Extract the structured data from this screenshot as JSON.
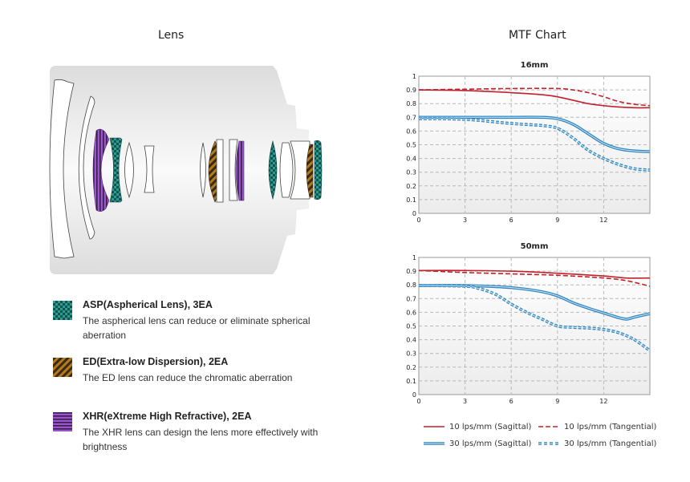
{
  "lens_section": {
    "title": "Lens",
    "legend": [
      {
        "icon": "asp-pattern-icon",
        "title": "ASP(Aspherical Lens), 3EA",
        "description": "The aspherical lens can reduce or eliminate spherical aberration",
        "color": "#1d7a72"
      },
      {
        "icon": "ed-pattern-icon",
        "title": "ED(Extra-low Dispersion), 2EA",
        "description": "The ED lens can reduce the chromatic aberration",
        "color": "#9a6a1e"
      },
      {
        "icon": "xhr-pattern-icon",
        "title": "XHR(eXtreme High Refractive), 2EA",
        "description": "The XHR lens can design the lens more effectively with brightness",
        "color": "#7a3ea0"
      }
    ]
  },
  "mtf_section": {
    "title": "MTF Chart",
    "legend": [
      {
        "label": "10 lps/mm (Sagittal)",
        "color": "#c0212b",
        "style": "solid"
      },
      {
        "label": "10 lps/mm (Tangential)",
        "color": "#c0212b",
        "style": "dashed"
      },
      {
        "label": "30 lps/mm (Sagittal)",
        "color": "#2f86c0",
        "style": "double"
      },
      {
        "label": "30 lps/mm (Tangential)",
        "color": "#2f86c0",
        "style": "double-dashed"
      }
    ]
  },
  "chart_data": [
    {
      "type": "line",
      "title": "16mm",
      "xlabel": "",
      "ylabel": "",
      "xlim": [
        0,
        15
      ],
      "ylim": [
        0,
        1
      ],
      "xticks": [
        0,
        3,
        6,
        9,
        12
      ],
      "yticks": [
        0,
        0.1,
        0.2,
        0.3,
        0.4,
        0.5,
        0.6,
        0.7,
        0.8,
        0.9,
        1
      ],
      "ytick_labels": [
        "0",
        "0.1",
        "0.2",
        "0.3",
        "0.4",
        "0.5",
        "0.6",
        "0.7",
        "0.8",
        "0.9",
        "1"
      ],
      "grid": true,
      "series": [
        {
          "name": "10 lps/mm (Sagittal)",
          "x": [
            0,
            3,
            6,
            8,
            9,
            10,
            11,
            12,
            13,
            14,
            15
          ],
          "y": [
            0.9,
            0.895,
            0.88,
            0.865,
            0.85,
            0.825,
            0.8,
            0.785,
            0.775,
            0.77,
            0.77
          ]
        },
        {
          "name": "10 lps/mm (Tangential)",
          "x": [
            0,
            3,
            6,
            9,
            10,
            11,
            12,
            13,
            14,
            15
          ],
          "y": [
            0.9,
            0.905,
            0.91,
            0.91,
            0.9,
            0.88,
            0.85,
            0.815,
            0.795,
            0.785
          ]
        },
        {
          "name": "30 lps/mm (Sagittal)",
          "x": [
            0,
            3,
            6,
            8,
            9,
            10,
            11,
            12,
            13,
            14,
            15
          ],
          "y": [
            0.7,
            0.7,
            0.7,
            0.7,
            0.69,
            0.65,
            0.58,
            0.51,
            0.47,
            0.455,
            0.45
          ]
        },
        {
          "name": "30 lps/mm (Tangential)",
          "x": [
            0,
            3,
            6,
            8,
            9,
            10,
            11,
            12,
            13,
            14,
            15
          ],
          "y": [
            0.69,
            0.685,
            0.655,
            0.64,
            0.62,
            0.55,
            0.46,
            0.4,
            0.355,
            0.325,
            0.315
          ]
        }
      ]
    },
    {
      "type": "line",
      "title": "50mm",
      "xlabel": "",
      "ylabel": "",
      "xlim": [
        0,
        15
      ],
      "ylim": [
        0,
        1
      ],
      "xticks": [
        0,
        3,
        6,
        9,
        12
      ],
      "yticks": [
        0,
        0.1,
        0.2,
        0.3,
        0.4,
        0.5,
        0.6,
        0.7,
        0.8,
        0.9,
        1
      ],
      "ytick_labels": [
        "0",
        "0.1",
        "0.2",
        "0.3",
        "0.4",
        "0.5",
        "0.6",
        "0.7",
        "0.8",
        "0.9",
        "1"
      ],
      "grid": true,
      "series": [
        {
          "name": "10 lps/mm (Sagittal)",
          "x": [
            0,
            3,
            6,
            9,
            12,
            13.5,
            15
          ],
          "y": [
            0.905,
            0.905,
            0.9,
            0.885,
            0.865,
            0.85,
            0.85
          ]
        },
        {
          "name": "10 lps/mm (Tangential)",
          "x": [
            0,
            3,
            6,
            9,
            12,
            13.5,
            15
          ],
          "y": [
            0.905,
            0.89,
            0.88,
            0.87,
            0.85,
            0.83,
            0.79
          ]
        },
        {
          "name": "30 lps/mm (Sagittal)",
          "x": [
            0,
            3,
            6,
            8,
            9,
            10,
            11,
            12,
            13,
            13.5,
            14,
            15
          ],
          "y": [
            0.795,
            0.795,
            0.78,
            0.75,
            0.72,
            0.67,
            0.63,
            0.595,
            0.56,
            0.55,
            0.565,
            0.59
          ]
        },
        {
          "name": "30 lps/mm (Tangential)",
          "x": [
            0,
            3,
            4,
            5,
            6,
            7,
            8,
            9,
            10,
            11,
            12,
            13,
            14,
            15
          ],
          "y": [
            0.795,
            0.79,
            0.77,
            0.73,
            0.66,
            0.6,
            0.55,
            0.5,
            0.49,
            0.485,
            0.475,
            0.45,
            0.4,
            0.32
          ]
        }
      ]
    }
  ]
}
